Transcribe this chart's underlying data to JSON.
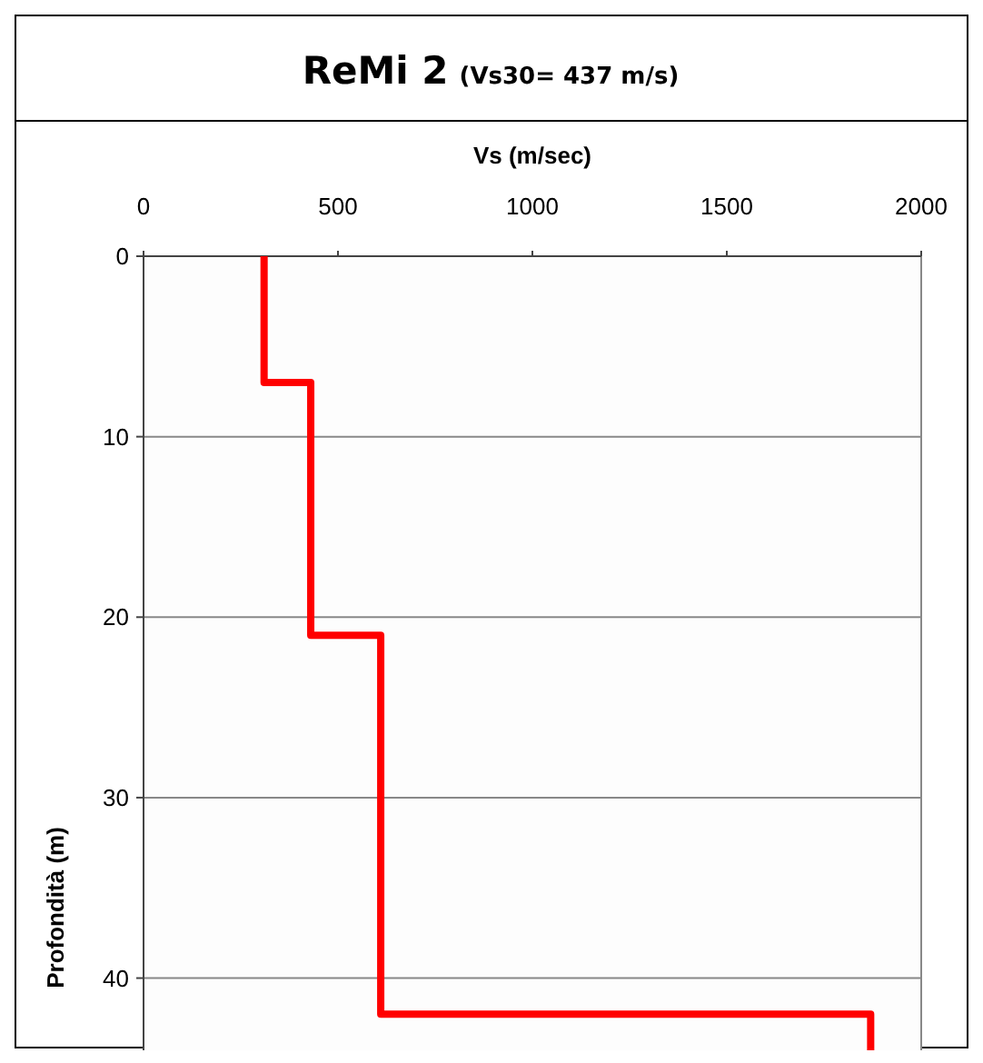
{
  "chart_data": {
    "type": "line",
    "title": "ReMi 2",
    "subtitle": "(Vs30= 437 m/s)",
    "xlabel": "Vs (m/sec)",
    "ylabel": "Profondità (m)",
    "series": [
      {
        "color": "#ff0000",
        "x": [
          310,
          310,
          430,
          430,
          610,
          610,
          1870,
          1870
        ],
        "values": [
          0,
          7,
          7,
          21,
          21,
          42,
          42,
          44
        ]
      }
    ],
    "xlim": [
      0,
      2000
    ],
    "xticks": [
      0,
      500,
      1000,
      1500,
      2000
    ],
    "ylim": [
      44,
      0
    ],
    "yticks": [
      0,
      10,
      20,
      30,
      40
    ],
    "grid": "y",
    "marker": "none",
    "line_style": "solid"
  }
}
